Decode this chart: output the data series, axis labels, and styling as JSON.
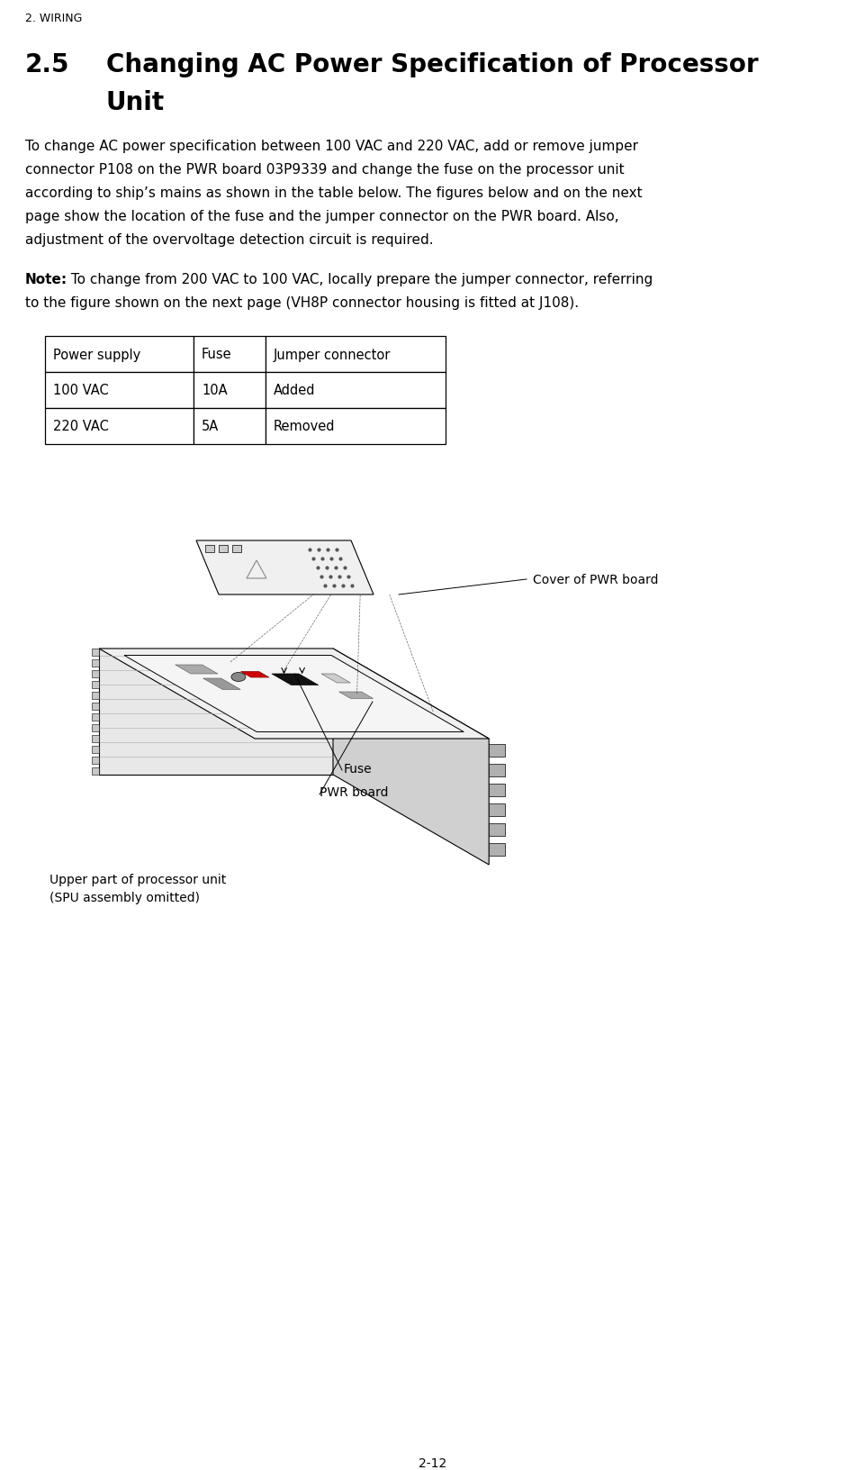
{
  "page_header": "2. WIRING",
  "section_number": "2.5",
  "section_title_line1": "Changing AC Power Specification of Processor",
  "section_title_line2": "Unit",
  "body_lines": [
    "To change AC power specification between 100 VAC and 220 VAC, add or remove jumper",
    "connector P108 on the PWR board 03P9339 and change the fuse on the processor unit",
    "according to ship’s mains as shown in the table below. The figures below and on the next",
    "page show the location of the fuse and the jumper connector on the PWR board. Also,",
    "adjustment of the overvoltage detection circuit is required."
  ],
  "note_bold": "Note:",
  "note_line1_rest": " To change from 200 VAC to 100 VAC, locally prepare the jumper connector, referring",
  "note_line2": "to the figure shown on the next page (VH8P connector housing is fitted at J108).",
  "table_col_headers": [
    "Power supply",
    "Fuse",
    "Jumper connector"
  ],
  "table_data": [
    [
      "100 VAC",
      "10A",
      "Added"
    ],
    [
      "220 VAC",
      "5A",
      "Removed"
    ]
  ],
  "label_cover_pwr": "Cover of PWR board",
  "label_fuse": "Fuse",
  "label_pwr_board": "PWR board",
  "label_upper_part": "Upper part of processor unit",
  "label_spu": "(SPU assembly omitted)",
  "page_number": "2-12",
  "bg_color": "#ffffff",
  "text_color": "#000000"
}
